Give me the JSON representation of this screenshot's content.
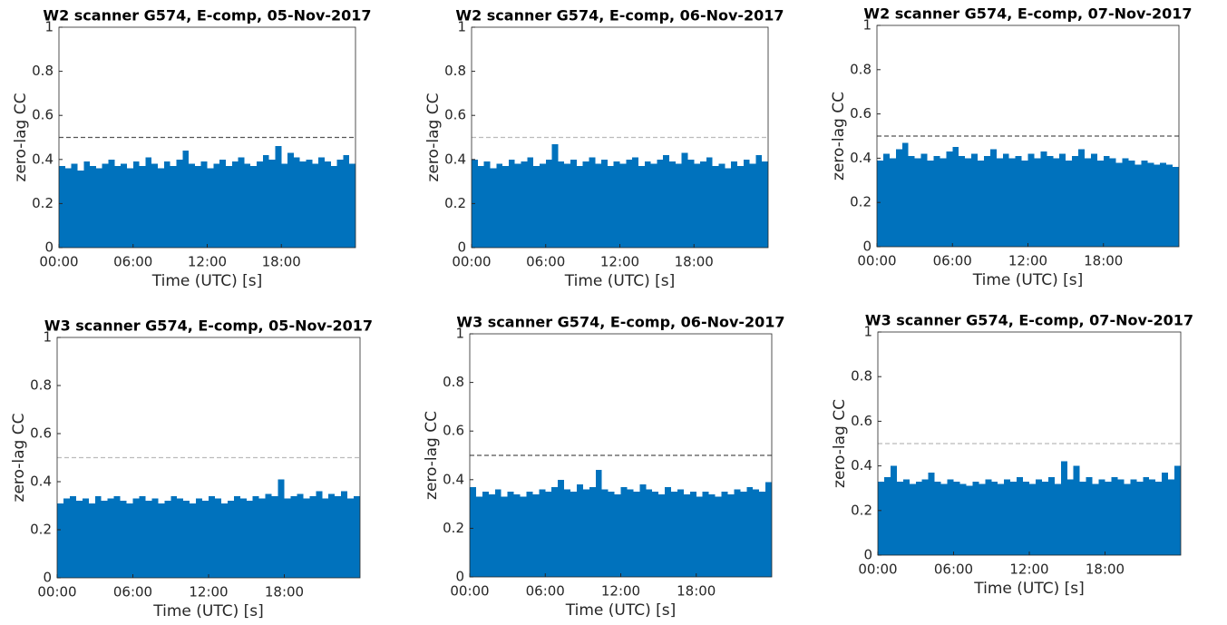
{
  "chart_data": [
    {
      "type": "bar",
      "title": "W2 scanner G574, E-comp, 05-Nov-2017",
      "xlabel": "Time (UTC) [s]",
      "ylabel": "zero-lag CC",
      "color": "#0072bd",
      "x": [
        0,
        0.5,
        1,
        1.5,
        2,
        2.5,
        3,
        3.5,
        4,
        4.5,
        5,
        5.5,
        6,
        6.5,
        7,
        7.5,
        8,
        8.5,
        9,
        9.5,
        10,
        10.5,
        11,
        11.5,
        12,
        12.5,
        13,
        13.5,
        14,
        14.5,
        15,
        15.5,
        16,
        16.5,
        17,
        17.5,
        18,
        18.5,
        19,
        19.5,
        20,
        20.5,
        21,
        21.5,
        22,
        22.5,
        23,
        23.5
      ],
      "values": [
        0.37,
        0.36,
        0.38,
        0.35,
        0.39,
        0.37,
        0.36,
        0.38,
        0.4,
        0.37,
        0.38,
        0.36,
        0.39,
        0.37,
        0.41,
        0.38,
        0.36,
        0.39,
        0.37,
        0.4,
        0.44,
        0.38,
        0.37,
        0.39,
        0.36,
        0.38,
        0.4,
        0.37,
        0.39,
        0.41,
        0.38,
        0.37,
        0.39,
        0.42,
        0.4,
        0.46,
        0.38,
        0.43,
        0.41,
        0.39,
        0.4,
        0.38,
        0.41,
        0.39,
        0.37,
        0.4,
        0.42,
        0.38
      ],
      "hline": 0.5,
      "hline_color": "#555555",
      "xlim": [
        0,
        24
      ],
      "ylim": [
        0,
        1
      ],
      "xticks": [
        {
          "value": 0,
          "label": "00:00"
        },
        {
          "value": 6,
          "label": "06:00"
        },
        {
          "value": 12,
          "label": "12:00"
        },
        {
          "value": 18,
          "label": "18:00"
        }
      ],
      "yticks": [
        0,
        0.2,
        0.4,
        0.6,
        0.8,
        1
      ],
      "show_ylabel": true
    },
    {
      "type": "bar",
      "title": "W2 scanner G574, E-comp, 06-Nov-2017",
      "xlabel": "Time (UTC) [s]",
      "ylabel": "zero-lag CC",
      "color": "#0072bd",
      "x": [
        0,
        0.5,
        1,
        1.5,
        2,
        2.5,
        3,
        3.5,
        4,
        4.5,
        5,
        5.5,
        6,
        6.5,
        7,
        7.5,
        8,
        8.5,
        9,
        9.5,
        10,
        10.5,
        11,
        11.5,
        12,
        12.5,
        13,
        13.5,
        14,
        14.5,
        15,
        15.5,
        16,
        16.5,
        17,
        17.5,
        18,
        18.5,
        19,
        19.5,
        20,
        20.5,
        21,
        21.5,
        22,
        22.5,
        23,
        23.5
      ],
      "values": [
        0.4,
        0.37,
        0.39,
        0.36,
        0.38,
        0.37,
        0.4,
        0.38,
        0.39,
        0.41,
        0.37,
        0.38,
        0.4,
        0.47,
        0.39,
        0.38,
        0.4,
        0.37,
        0.39,
        0.41,
        0.38,
        0.4,
        0.37,
        0.39,
        0.38,
        0.4,
        0.41,
        0.37,
        0.39,
        0.38,
        0.4,
        0.42,
        0.39,
        0.38,
        0.43,
        0.4,
        0.38,
        0.39,
        0.41,
        0.37,
        0.38,
        0.36,
        0.39,
        0.37,
        0.4,
        0.38,
        0.42,
        0.39
      ],
      "hline": 0.5,
      "hline_color": "#bbbbbb",
      "xlim": [
        0,
        24
      ],
      "ylim": [
        0,
        1
      ],
      "xticks": [
        {
          "value": 0,
          "label": "00:00"
        },
        {
          "value": 6,
          "label": "06:00"
        },
        {
          "value": 12,
          "label": "12:00"
        },
        {
          "value": 18,
          "label": "18:00"
        }
      ],
      "yticks": [
        0,
        0.2,
        0.4,
        0.6,
        0.8,
        1
      ]
    },
    {
      "type": "bar",
      "title": "W2 scanner G574, E-comp, 07-Nov-2017",
      "xlabel": "Time (UTC) [s]",
      "ylabel": "zero-lag CC",
      "color": "#0072bd",
      "x": [
        0,
        0.5,
        1,
        1.5,
        2,
        2.5,
        3,
        3.5,
        4,
        4.5,
        5,
        5.5,
        6,
        6.5,
        7,
        7.5,
        8,
        8.5,
        9,
        9.5,
        10,
        10.5,
        11,
        11.5,
        12,
        12.5,
        13,
        13.5,
        14,
        14.5,
        15,
        15.5,
        16,
        16.5,
        17,
        17.5,
        18,
        18.5,
        19,
        19.5,
        20,
        20.5,
        21,
        21.5,
        22,
        22.5,
        23,
        23.5
      ],
      "values": [
        0.39,
        0.42,
        0.4,
        0.44,
        0.47,
        0.41,
        0.4,
        0.42,
        0.39,
        0.41,
        0.4,
        0.43,
        0.45,
        0.41,
        0.4,
        0.42,
        0.39,
        0.41,
        0.44,
        0.4,
        0.42,
        0.4,
        0.41,
        0.39,
        0.42,
        0.4,
        0.43,
        0.41,
        0.4,
        0.42,
        0.39,
        0.41,
        0.44,
        0.4,
        0.42,
        0.39,
        0.41,
        0.4,
        0.38,
        0.4,
        0.39,
        0.37,
        0.39,
        0.38,
        0.37,
        0.38,
        0.37,
        0.36
      ],
      "hline": 0.5,
      "hline_color": "#555555",
      "xlim": [
        0,
        24
      ],
      "ylim": [
        0,
        1
      ],
      "xticks": [
        {
          "value": 0,
          "label": "00:00"
        },
        {
          "value": 6,
          "label": "06:00"
        },
        {
          "value": 12,
          "label": "12:00"
        },
        {
          "value": 18,
          "label": "18:00"
        }
      ],
      "yticks": [
        0,
        0.2,
        0.4,
        0.6,
        0.8,
        1
      ]
    },
    {
      "type": "bar",
      "title": "W3 scanner G574, E-comp, 05-Nov-2017",
      "xlabel": "Time (UTC) [s]",
      "ylabel": "zero-lag CC",
      "color": "#0072bd",
      "x": [
        0,
        0.5,
        1,
        1.5,
        2,
        2.5,
        3,
        3.5,
        4,
        4.5,
        5,
        5.5,
        6,
        6.5,
        7,
        7.5,
        8,
        8.5,
        9,
        9.5,
        10,
        10.5,
        11,
        11.5,
        12,
        12.5,
        13,
        13.5,
        14,
        14.5,
        15,
        15.5,
        16,
        16.5,
        17,
        17.5,
        18,
        18.5,
        19,
        19.5,
        20,
        20.5,
        21,
        21.5,
        22,
        22.5,
        23,
        23.5
      ],
      "values": [
        0.31,
        0.33,
        0.34,
        0.32,
        0.33,
        0.31,
        0.34,
        0.32,
        0.33,
        0.34,
        0.32,
        0.31,
        0.33,
        0.34,
        0.32,
        0.33,
        0.31,
        0.32,
        0.34,
        0.33,
        0.32,
        0.31,
        0.33,
        0.32,
        0.34,
        0.33,
        0.31,
        0.32,
        0.34,
        0.33,
        0.32,
        0.34,
        0.33,
        0.35,
        0.34,
        0.41,
        0.33,
        0.34,
        0.35,
        0.33,
        0.34,
        0.36,
        0.33,
        0.35,
        0.34,
        0.36,
        0.33,
        0.34
      ],
      "hline": 0.5,
      "hline_color": "#bbbbbb",
      "xlim": [
        0,
        24
      ],
      "ylim": [
        0,
        1
      ],
      "xticks": [
        {
          "value": 0,
          "label": "00:00"
        },
        {
          "value": 6,
          "label": "06:00"
        },
        {
          "value": 12,
          "label": "12:00"
        },
        {
          "value": 18,
          "label": "18:00"
        }
      ],
      "yticks": [
        0,
        0.2,
        0.4,
        0.6,
        0.8,
        1
      ]
    },
    {
      "type": "bar",
      "title": "W3 scanner G574, E-comp, 06-Nov-2017",
      "xlabel": "Time (UTC) [s]",
      "ylabel": "zero-lag CC",
      "color": "#0072bd",
      "x": [
        0,
        0.5,
        1,
        1.5,
        2,
        2.5,
        3,
        3.5,
        4,
        4.5,
        5,
        5.5,
        6,
        6.5,
        7,
        7.5,
        8,
        8.5,
        9,
        9.5,
        10,
        10.5,
        11,
        11.5,
        12,
        12.5,
        13,
        13.5,
        14,
        14.5,
        15,
        15.5,
        16,
        16.5,
        17,
        17.5,
        18,
        18.5,
        19,
        19.5,
        20,
        20.5,
        21,
        21.5,
        22,
        22.5,
        23,
        23.5
      ],
      "values": [
        0.37,
        0.33,
        0.35,
        0.34,
        0.36,
        0.33,
        0.35,
        0.34,
        0.33,
        0.35,
        0.34,
        0.36,
        0.35,
        0.37,
        0.4,
        0.36,
        0.35,
        0.38,
        0.36,
        0.37,
        0.44,
        0.36,
        0.35,
        0.34,
        0.37,
        0.36,
        0.35,
        0.38,
        0.36,
        0.35,
        0.34,
        0.37,
        0.35,
        0.36,
        0.34,
        0.35,
        0.33,
        0.35,
        0.34,
        0.33,
        0.35,
        0.34,
        0.36,
        0.35,
        0.37,
        0.36,
        0.35,
        0.39
      ],
      "hline": 0.5,
      "hline_color": "#555555",
      "xlim": [
        0,
        24
      ],
      "ylim": [
        0,
        1
      ],
      "xticks": [
        {
          "value": 0,
          "label": "00:00"
        },
        {
          "value": 6,
          "label": "06:00"
        },
        {
          "value": 12,
          "label": "12:00"
        },
        {
          "value": 18,
          "label": "18:00"
        }
      ],
      "yticks": [
        0,
        0.2,
        0.4,
        0.6,
        0.8,
        1
      ]
    },
    {
      "type": "bar",
      "title": "W3 scanner G574, E-comp, 07-Nov-2017",
      "xlabel": "Time (UTC) [s]",
      "ylabel": "zero-lag CC",
      "color": "#0072bd",
      "x": [
        0,
        0.5,
        1,
        1.5,
        2,
        2.5,
        3,
        3.5,
        4,
        4.5,
        5,
        5.5,
        6,
        6.5,
        7,
        7.5,
        8,
        8.5,
        9,
        9.5,
        10,
        10.5,
        11,
        11.5,
        12,
        12.5,
        13,
        13.5,
        14,
        14.5,
        15,
        15.5,
        16,
        16.5,
        17,
        17.5,
        18,
        18.5,
        19,
        19.5,
        20,
        20.5,
        21,
        21.5,
        22,
        22.5,
        23,
        23.5
      ],
      "values": [
        0.33,
        0.35,
        0.4,
        0.33,
        0.34,
        0.32,
        0.33,
        0.34,
        0.37,
        0.33,
        0.32,
        0.34,
        0.33,
        0.32,
        0.31,
        0.33,
        0.32,
        0.34,
        0.33,
        0.32,
        0.34,
        0.33,
        0.35,
        0.33,
        0.32,
        0.34,
        0.33,
        0.35,
        0.32,
        0.42,
        0.34,
        0.4,
        0.33,
        0.35,
        0.32,
        0.34,
        0.33,
        0.35,
        0.34,
        0.32,
        0.34,
        0.33,
        0.35,
        0.34,
        0.33,
        0.37,
        0.34,
        0.4
      ],
      "hline": 0.5,
      "hline_color": "#bbbbbb",
      "xlim": [
        0,
        24
      ],
      "ylim": [
        0,
        1
      ],
      "xticks": [
        {
          "value": 0,
          "label": "00:00"
        },
        {
          "value": 6,
          "label": "06:00"
        },
        {
          "value": 12,
          "label": "12:00"
        },
        {
          "value": 18,
          "label": "18:00"
        }
      ],
      "yticks": [
        0,
        0.2,
        0.4,
        0.6,
        0.8,
        1
      ]
    }
  ]
}
